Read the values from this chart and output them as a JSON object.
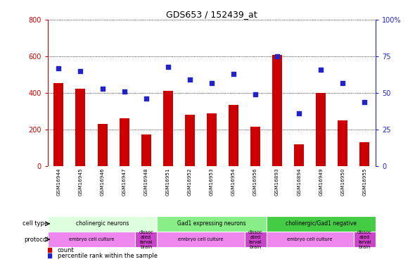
{
  "title": "GDS653 / 152439_at",
  "samples": [
    "GSM16944",
    "GSM16945",
    "GSM16946",
    "GSM16947",
    "GSM16948",
    "GSM16951",
    "GSM16952",
    "GSM16953",
    "GSM16954",
    "GSM16956",
    "GSM16893",
    "GSM16894",
    "GSM16949",
    "GSM16950",
    "GSM16955"
  ],
  "counts": [
    455,
    425,
    230,
    260,
    175,
    410,
    280,
    290,
    335,
    215,
    610,
    120,
    400,
    250,
    130
  ],
  "percentiles": [
    67,
    65,
    53,
    51,
    46,
    68,
    59,
    57,
    63,
    49,
    75,
    36,
    66,
    57,
    44
  ],
  "ylim_left": [
    0,
    800
  ],
  "ylim_right": [
    0,
    100
  ],
  "yticks_left": [
    0,
    200,
    400,
    600,
    800
  ],
  "yticks_right": [
    0,
    25,
    50,
    75,
    100
  ],
  "bar_color": "#cc0000",
  "dot_color": "#2222cc",
  "cell_type_groups": [
    {
      "label": "cholinergic neurons",
      "start": 0,
      "end": 5,
      "color": "#ddffdd"
    },
    {
      "label": "Gad1 expressing neurons",
      "start": 5,
      "end": 10,
      "color": "#88ee88"
    },
    {
      "label": "cholinergic/Gad1 negative",
      "start": 10,
      "end": 15,
      "color": "#44cc44"
    }
  ],
  "protocol_groups": [
    {
      "label": "embryo cell culture",
      "start": 0,
      "end": 4,
      "color": "#ee88ee"
    },
    {
      "label": "dissoc\nated\nlarval\nbrain",
      "start": 4,
      "end": 5,
      "color": "#cc44cc"
    },
    {
      "label": "embryo cell culture",
      "start": 5,
      "end": 9,
      "color": "#ee88ee"
    },
    {
      "label": "dissoc\nated\nlarval\nbrain",
      "start": 9,
      "end": 10,
      "color": "#cc44cc"
    },
    {
      "label": "embryo cell culture",
      "start": 10,
      "end": 14,
      "color": "#ee88ee"
    },
    {
      "label": "dissoc\nated\nlarval\nbrain",
      "start": 14,
      "end": 15,
      "color": "#cc44cc"
    }
  ],
  "cell_type_label": "cell type",
  "protocol_label": "protocol",
  "legend_count_label": "count",
  "legend_percentile_label": "percentile rank within the sample",
  "left_axis_color": "#cc0000",
  "right_axis_color": "#2222cc",
  "xtick_bg_color": "#cccccc",
  "plot_bg_color": "#ffffff"
}
